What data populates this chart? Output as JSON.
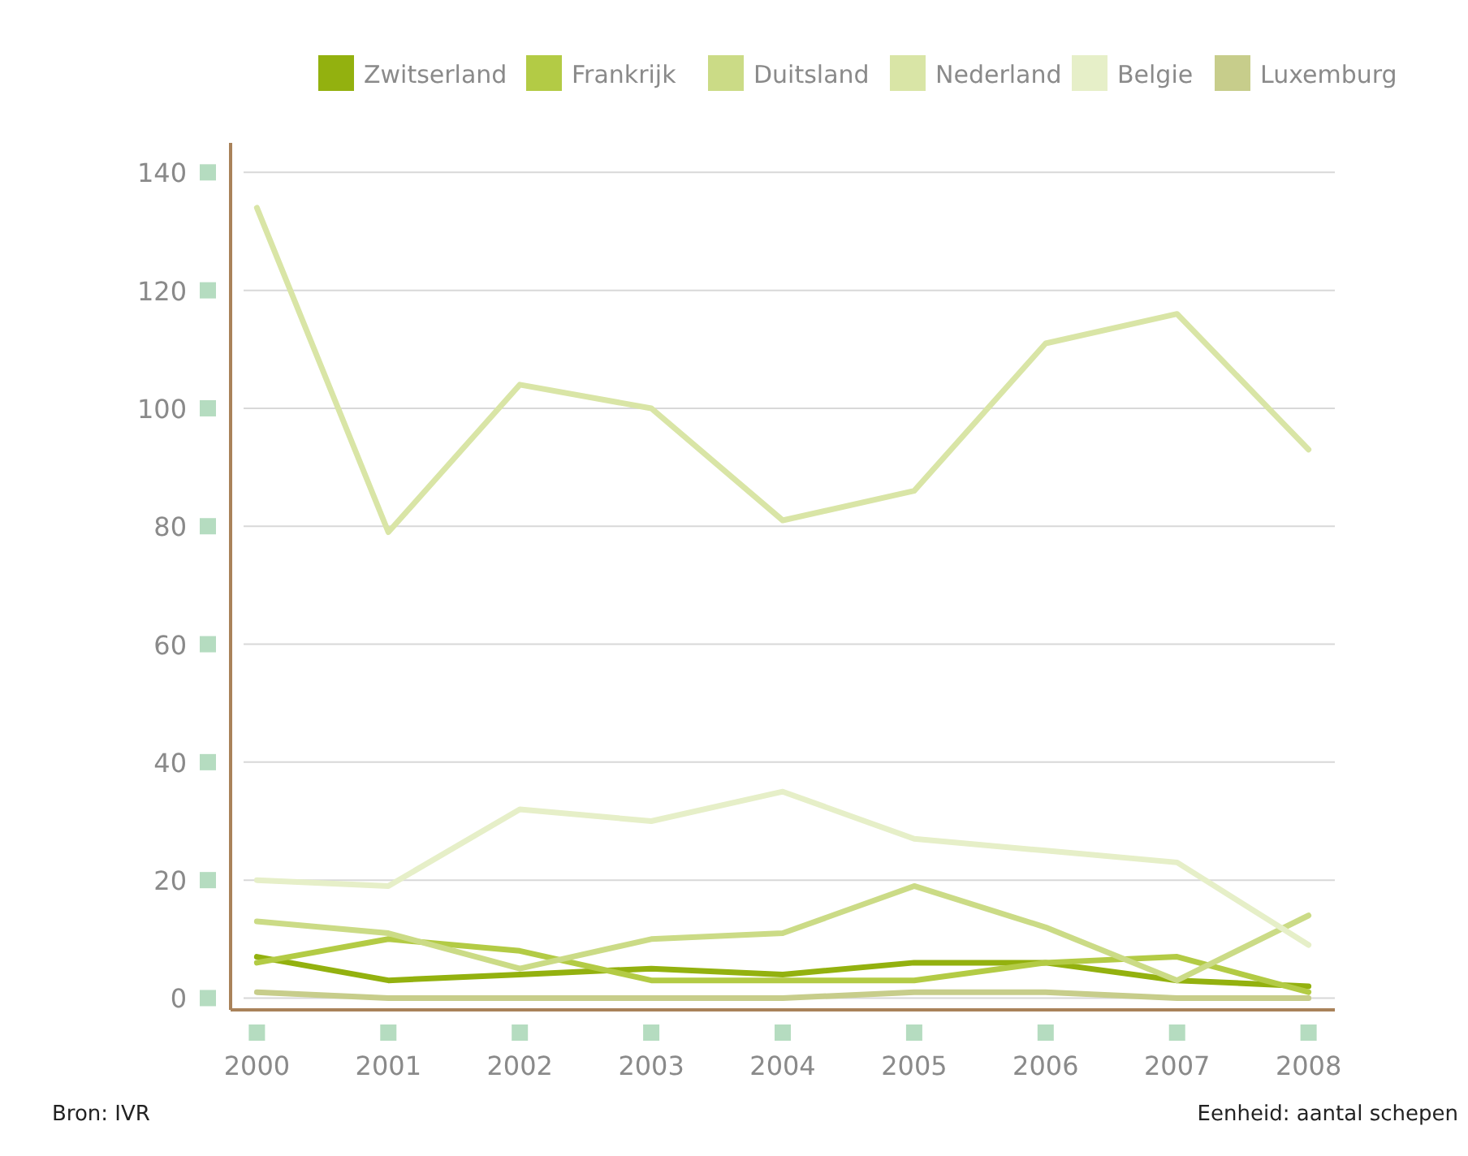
{
  "chart_data": {
    "type": "line",
    "x": [
      2000,
      2001,
      2002,
      2003,
      2004,
      2005,
      2006,
      2007,
      2008
    ],
    "series": [
      {
        "name": "Zwitserland",
        "color": "#93b10f",
        "values": [
          7,
          3,
          4,
          5,
          4,
          6,
          6,
          3,
          2
        ]
      },
      {
        "name": "Frankrijk",
        "color": "#b3cb45",
        "values": [
          6,
          10,
          8,
          3,
          3,
          3,
          6,
          7,
          1
        ]
      },
      {
        "name": "Duitsland",
        "color": "#cbdb86",
        "values": [
          13,
          11,
          5,
          10,
          11,
          19,
          12,
          3,
          14
        ]
      },
      {
        "name": "Nederland",
        "color": "#d9e5a6",
        "values": [
          134,
          79,
          104,
          100,
          81,
          86,
          111,
          116,
          93
        ]
      },
      {
        "name": "Belgie",
        "color": "#e6efc8",
        "values": [
          20,
          19,
          32,
          30,
          35,
          27,
          25,
          23,
          9
        ]
      },
      {
        "name": "Luxemburg",
        "color": "#c7cd8b",
        "values": [
          1,
          0,
          0,
          0,
          0,
          1,
          1,
          0,
          0
        ]
      }
    ],
    "xlim": [
      1999.8,
      2008.2
    ],
    "xticks": [
      2000,
      2001,
      2002,
      2003,
      2004,
      2005,
      2006,
      2007,
      2008
    ],
    "ylim": [
      -2,
      145
    ],
    "yticks": [
      0,
      20,
      40,
      60,
      80,
      100,
      120,
      140
    ],
    "grid": "y",
    "legend": "top",
    "marker": "none",
    "line_style": "solid",
    "annotations": [
      "Bron: IVR",
      "Eenheid: aantal schepen"
    ]
  }
}
